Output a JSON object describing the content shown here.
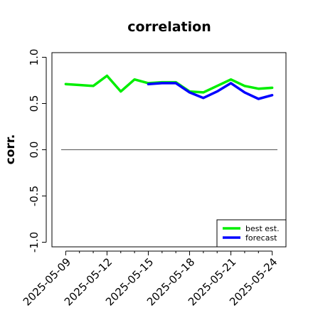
{
  "chart_data": {
    "type": "line",
    "title": "correlation",
    "xlabel": "",
    "ylabel": "corr.",
    "ylim": [
      -1.05,
      1.05
    ],
    "yticks": [
      -1.0,
      -0.5,
      0.0,
      0.5,
      1.0
    ],
    "ytick_labels": [
      "-1.0",
      "-0.5",
      "0.0",
      "0.5",
      "1.0"
    ],
    "xlim": [
      "2025-05-08",
      "2025-05-25"
    ],
    "xticks": [
      "2025-05-09",
      "2025-05-10",
      "2025-05-11",
      "2025-05-12",
      "2025-05-13",
      "2025-05-14",
      "2025-05-15",
      "2025-05-16",
      "2025-05-17",
      "2025-05-18",
      "2025-05-19",
      "2025-05-20",
      "2025-05-21",
      "2025-05-22",
      "2025-05-23",
      "2025-05-24"
    ],
    "xtick_labels": [
      "2025-05-09",
      "2025-05-12",
      "2025-05-15",
      "2025-05-18",
      "2025-05-21",
      "2025-05-24"
    ],
    "xtick_label_dates": [
      "2025-05-09",
      "2025-05-12",
      "2025-05-15",
      "2025-05-18",
      "2025-05-21",
      "2025-05-24"
    ],
    "highlight_label": "2025-05-15",
    "highlight_color": "#228B22",
    "reference_line": 0.0,
    "grid": false,
    "legend_position": "bottom-right",
    "series": [
      {
        "name": "best est.",
        "color": "#00ee00",
        "x": [
          "2025-05-09",
          "2025-05-10",
          "2025-05-11",
          "2025-05-12",
          "2025-05-13",
          "2025-05-14",
          "2025-05-15",
          "2025-05-16",
          "2025-05-17",
          "2025-05-18",
          "2025-05-19",
          "2025-05-20",
          "2025-05-21",
          "2025-05-22",
          "2025-05-23",
          "2025-05-24"
        ],
        "values": [
          0.71,
          0.7,
          0.69,
          0.8,
          0.63,
          0.76,
          0.72,
          0.73,
          0.73,
          0.63,
          0.62,
          0.69,
          0.76,
          0.69,
          0.66,
          0.67
        ]
      },
      {
        "name": "forecast",
        "color": "#0000ff",
        "x": [
          "2025-05-15",
          "2025-05-16",
          "2025-05-17",
          "2025-05-18",
          "2025-05-19",
          "2025-05-20",
          "2025-05-21",
          "2025-05-22",
          "2025-05-23",
          "2025-05-24"
        ],
        "values": [
          0.71,
          0.72,
          0.72,
          0.62,
          0.56,
          0.63,
          0.72,
          0.62,
          0.55,
          0.59
        ]
      }
    ]
  }
}
